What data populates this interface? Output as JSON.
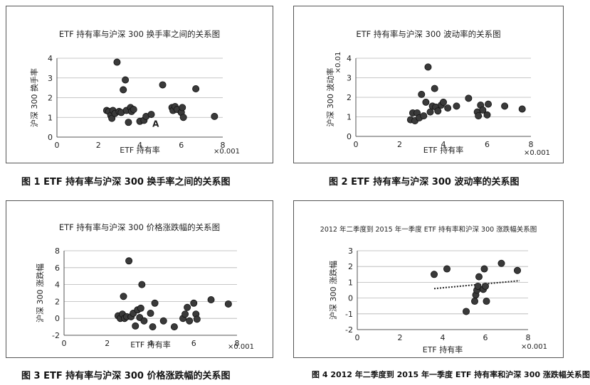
{
  "chart_data": [
    {
      "type": "scatter",
      "title": "ETF 持有率与沪深 300 换手率之间的关系图",
      "xlabel": "ETF 持有率",
      "ylabel": "沪深 300 换手率",
      "x_multiplier": "×0.001",
      "xlim": [
        0,
        8
      ],
      "ylim": [
        0,
        4
      ],
      "xticks": [
        0,
        2,
        4,
        6,
        8
      ],
      "yticks": [
        0,
        1,
        2,
        3,
        4
      ],
      "annotation": {
        "text": "A",
        "x": 4.4,
        "y": 0.7
      },
      "points": [
        {
          "x": 2.4,
          "y": 1.35
        },
        {
          "x": 2.5,
          "y": 1.3
        },
        {
          "x": 2.6,
          "y": 1.1
        },
        {
          "x": 2.65,
          "y": 0.95
        },
        {
          "x": 2.7,
          "y": 1.35
        },
        {
          "x": 2.8,
          "y": 1.2
        },
        {
          "x": 2.9,
          "y": 3.8
        },
        {
          "x": 3.0,
          "y": 1.3
        },
        {
          "x": 3.1,
          "y": 1.25
        },
        {
          "x": 3.2,
          "y": 2.4
        },
        {
          "x": 3.3,
          "y": 2.9
        },
        {
          "x": 3.35,
          "y": 1.35
        },
        {
          "x": 3.45,
          "y": 0.75
        },
        {
          "x": 3.55,
          "y": 1.5
        },
        {
          "x": 3.6,
          "y": 1.3
        },
        {
          "x": 3.7,
          "y": 1.4
        },
        {
          "x": 4.0,
          "y": 0.8
        },
        {
          "x": 4.2,
          "y": 0.85
        },
        {
          "x": 4.3,
          "y": 1.05
        },
        {
          "x": 4.55,
          "y": 1.15
        },
        {
          "x": 5.1,
          "y": 2.65
        },
        {
          "x": 5.55,
          "y": 1.5
        },
        {
          "x": 5.6,
          "y": 1.35
        },
        {
          "x": 5.7,
          "y": 1.55
        },
        {
          "x": 5.8,
          "y": 1.4
        },
        {
          "x": 6.0,
          "y": 1.25
        },
        {
          "x": 6.05,
          "y": 1.5
        },
        {
          "x": 6.1,
          "y": 1.0
        },
        {
          "x": 6.7,
          "y": 2.45
        },
        {
          "x": 7.6,
          "y": 1.05
        }
      ]
    },
    {
      "type": "scatter",
      "title": "ETF 持有率与沪深 300 波动率的关系图",
      "xlabel": "ETF 持有率",
      "ylabel": "沪深 300 波动率",
      "x_multiplier": "×0.001",
      "y_multiplier": "×0.01",
      "xlim": [
        0,
        8
      ],
      "ylim": [
        0,
        4
      ],
      "xticks": [
        0,
        2,
        4,
        6,
        8
      ],
      "yticks": [
        0,
        1,
        2,
        3,
        4
      ],
      "points": [
        {
          "x": 2.5,
          "y": 0.85
        },
        {
          "x": 2.6,
          "y": 1.2
        },
        {
          "x": 2.7,
          "y": 0.8
        },
        {
          "x": 2.8,
          "y": 1.2
        },
        {
          "x": 2.9,
          "y": 0.95
        },
        {
          "x": 3.0,
          "y": 2.15
        },
        {
          "x": 3.1,
          "y": 1.05
        },
        {
          "x": 3.2,
          "y": 1.75
        },
        {
          "x": 3.3,
          "y": 3.55
        },
        {
          "x": 3.4,
          "y": 1.25
        },
        {
          "x": 3.5,
          "y": 1.55
        },
        {
          "x": 3.6,
          "y": 2.45
        },
        {
          "x": 3.65,
          "y": 1.5
        },
        {
          "x": 3.75,
          "y": 1.3
        },
        {
          "x": 3.9,
          "y": 1.6
        },
        {
          "x": 4.0,
          "y": 1.75
        },
        {
          "x": 4.2,
          "y": 1.45
        },
        {
          "x": 4.6,
          "y": 1.55
        },
        {
          "x": 5.15,
          "y": 1.95
        },
        {
          "x": 5.55,
          "y": 1.25
        },
        {
          "x": 5.6,
          "y": 1.05
        },
        {
          "x": 5.7,
          "y": 1.6
        },
        {
          "x": 5.8,
          "y": 1.35
        },
        {
          "x": 6.0,
          "y": 1.1
        },
        {
          "x": 6.05,
          "y": 1.65
        },
        {
          "x": 6.8,
          "y": 1.55
        },
        {
          "x": 7.6,
          "y": 1.4
        }
      ]
    },
    {
      "type": "scatter",
      "title": "ETF 持有率与沪深 300 价格涨跌幅的关系图",
      "xlabel": "ETF 持有率",
      "ylabel": "沪深 300 涨跌幅",
      "x_multiplier": "×0.001",
      "xlim": [
        0,
        8
      ],
      "ylim": [
        -2,
        8
      ],
      "xticks": [
        0,
        2,
        4,
        6,
        8
      ],
      "yticks": [
        -2,
        0,
        2,
        4,
        6,
        8
      ],
      "points": [
        {
          "x": 2.5,
          "y": 0.3
        },
        {
          "x": 2.6,
          "y": 0.0
        },
        {
          "x": 2.7,
          "y": 0.5
        },
        {
          "x": 2.75,
          "y": 2.6
        },
        {
          "x": 2.8,
          "y": 0.0
        },
        {
          "x": 2.9,
          "y": 0.2
        },
        {
          "x": 3.0,
          "y": 6.8
        },
        {
          "x": 3.1,
          "y": 0.2
        },
        {
          "x": 3.2,
          "y": 0.6
        },
        {
          "x": 3.3,
          "y": -0.9
        },
        {
          "x": 3.4,
          "y": 1.0
        },
        {
          "x": 3.5,
          "y": 0.1
        },
        {
          "x": 3.55,
          "y": 1.2
        },
        {
          "x": 3.6,
          "y": 4.0
        },
        {
          "x": 3.7,
          "y": -0.3
        },
        {
          "x": 4.0,
          "y": 0.6
        },
        {
          "x": 4.1,
          "y": -1.0
        },
        {
          "x": 4.2,
          "y": 1.8
        },
        {
          "x": 4.6,
          "y": -0.3
        },
        {
          "x": 5.1,
          "y": -1.0
        },
        {
          "x": 5.5,
          "y": 0.0
        },
        {
          "x": 5.6,
          "y": 0.5
        },
        {
          "x": 5.7,
          "y": 1.3
        },
        {
          "x": 5.8,
          "y": -0.3
        },
        {
          "x": 6.0,
          "y": 1.8
        },
        {
          "x": 6.1,
          "y": 0.5
        },
        {
          "x": 6.15,
          "y": -0.1
        },
        {
          "x": 6.8,
          "y": 2.2
        },
        {
          "x": 7.6,
          "y": 1.7
        }
      ]
    },
    {
      "type": "scatter",
      "title": "2012 年二季度到 2015 年一季度 ETF 持有率和沪深 300 涨跌幅关系图",
      "xlabel": "ETF 持有率",
      "ylabel": "沪深 300 涨跌幅",
      "x_multiplier": "×0.001",
      "xlim": [
        0,
        8
      ],
      "ylim": [
        -2,
        3
      ],
      "xticks": [
        0,
        2,
        4,
        6,
        8
      ],
      "yticks": [
        -2,
        -1,
        0,
        1,
        2,
        3
      ],
      "trendline": {
        "x": [
          3.6,
          7.6
        ],
        "y": [
          0.6,
          1.1
        ]
      },
      "points": [
        {
          "x": 3.6,
          "y": 1.5
        },
        {
          "x": 4.2,
          "y": 1.85
        },
        {
          "x": 5.1,
          "y": -0.85
        },
        {
          "x": 5.5,
          "y": -0.2
        },
        {
          "x": 5.55,
          "y": 0.2
        },
        {
          "x": 5.6,
          "y": 0.5
        },
        {
          "x": 5.65,
          "y": 0.75
        },
        {
          "x": 5.7,
          "y": 1.35
        },
        {
          "x": 5.9,
          "y": 0.55
        },
        {
          "x": 5.95,
          "y": 1.85
        },
        {
          "x": 6.0,
          "y": 0.75
        },
        {
          "x": 6.05,
          "y": -0.2
        },
        {
          "x": 6.75,
          "y": 2.2
        },
        {
          "x": 7.5,
          "y": 1.75
        }
      ]
    }
  ],
  "captions": [
    "图 1   ETF 持有率与沪深 300 换手率之间的关系图",
    "图 2   ETF 持有率与沪深 300 波动率的关系图",
    "图 3   ETF 持有率与沪深 300 价格涨跌幅的关系图",
    "图 4  2012 年二季度到 2015 年一季度 ETF 持有率和沪深 300 涨跌幅关系图"
  ]
}
